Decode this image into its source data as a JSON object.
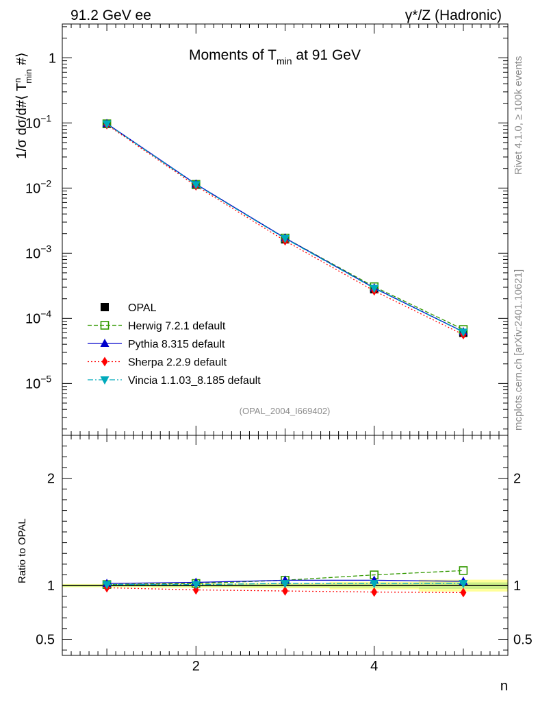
{
  "header": {
    "left": "91.2 GeV ee",
    "right": "γ*/Z (Hadronic)"
  },
  "side_labels": {
    "rivet": "Rivet 4.1.0, ≥ 100k events",
    "mcplots": "mcplots.cern.ch [arXiv:2401.10621]"
  },
  "chart_data": [
    {
      "type": "line",
      "title_main": "Moments of T",
      "title_sub": "min",
      "title_rest": " at 91 GeV",
      "ylabel": "1/σ  dσ/d#⟨ T",
      "ylabel_sup": "n",
      "ylabel_sub": "min",
      "ylabel_end": " #⟩",
      "yscale": "log",
      "ylim": [
        1.6e-06,
        3.3
      ],
      "xlim": [
        0.5,
        5.5
      ],
      "y_ticks": [
        {
          "value": 1,
          "label": "1"
        },
        {
          "value": 0.1,
          "label": "10",
          "exp": "−1"
        },
        {
          "value": 0.01,
          "label": "10",
          "exp": "−2"
        },
        {
          "value": 0.001,
          "label": "10",
          "exp": "−3"
        },
        {
          "value": 0.0001,
          "label": "10",
          "exp": "−4"
        },
        {
          "value": 1e-05,
          "label": "10",
          "exp": "−5"
        }
      ],
      "annotation": "(OPAL_2004_I669402)",
      "x": [
        1,
        2,
        3,
        4,
        5
      ],
      "series": [
        {
          "name": "OPAL",
          "values": [
            0.096,
            0.0112,
            0.00163,
            0.00028,
            5.98e-05
          ],
          "color": "#000000",
          "marker": "square-filled",
          "line": "none"
        },
        {
          "name": "Herwig 7.2.1 default",
          "values": [
            0.097,
            0.0114,
            0.00171,
            0.000306,
            6.75e-05
          ],
          "color": "#339900",
          "marker": "square-open",
          "line": "dashed"
        },
        {
          "name": "Pythia 8.315 default",
          "values": [
            0.0975,
            0.0115,
            0.00171,
            0.000293,
            6.22e-05
          ],
          "color": "#0000cc",
          "marker": "triangle-up",
          "line": "solid"
        },
        {
          "name": "Sherpa 2.2.9 default",
          "values": [
            0.094,
            0.0108,
            0.00155,
            0.000264,
            5.62e-05
          ],
          "color": "#ff0000",
          "marker": "diamond",
          "line": "dotted"
        },
        {
          "name": "Vincia 1.1.03_8.185 default",
          "values": [
            0.0968,
            0.0113,
            0.00168,
            0.000289,
            6.15e-05
          ],
          "color": "#00aabb",
          "marker": "triangle-down",
          "line": "dashdot"
        }
      ]
    },
    {
      "type": "line",
      "ylabel": "Ratio to OPAL",
      "xlabel": "n",
      "ylim": [
        0.35,
        2.4
      ],
      "xlim": [
        0.5,
        5.5
      ],
      "x_ticks": [
        {
          "value": 2,
          "label": "2"
        },
        {
          "value": 4,
          "label": "4"
        }
      ],
      "y_ticks": [
        {
          "value": 0.5,
          "label": "0.5"
        },
        {
          "value": 1,
          "label": "1"
        },
        {
          "value": 2,
          "label": "2"
        }
      ],
      "reference_band": {
        "x": [
          1,
          2,
          3,
          4,
          5
        ],
        "stat": [
          0.01,
          0.012,
          0.015,
          0.02,
          0.03
        ],
        "total": [
          0.015,
          0.02,
          0.025,
          0.035,
          0.055
        ]
      },
      "x": [
        1,
        2,
        3,
        4,
        5
      ],
      "series": [
        {
          "name": "Herwig 7.2.1 default",
          "values": [
            1.01,
            1.02,
            1.05,
            1.1,
            1.14
          ],
          "color": "#339900",
          "marker": "square-open",
          "line": "dashed"
        },
        {
          "name": "Pythia 8.315 default",
          "values": [
            1.02,
            1.03,
            1.05,
            1.05,
            1.04
          ],
          "color": "#0000cc",
          "marker": "triangle-up",
          "line": "solid"
        },
        {
          "name": "Sherpa 2.2.9 default",
          "values": [
            0.98,
            0.96,
            0.95,
            0.94,
            0.935
          ],
          "color": "#ff0000",
          "marker": "diamond",
          "line": "dotted"
        },
        {
          "name": "Vincia 1.1.03_8.185 default",
          "values": [
            1.01,
            1.01,
            1.02,
            1.02,
            1.02
          ],
          "color": "#00aabb",
          "marker": "triangle-down",
          "line": "dashdot"
        }
      ]
    }
  ]
}
